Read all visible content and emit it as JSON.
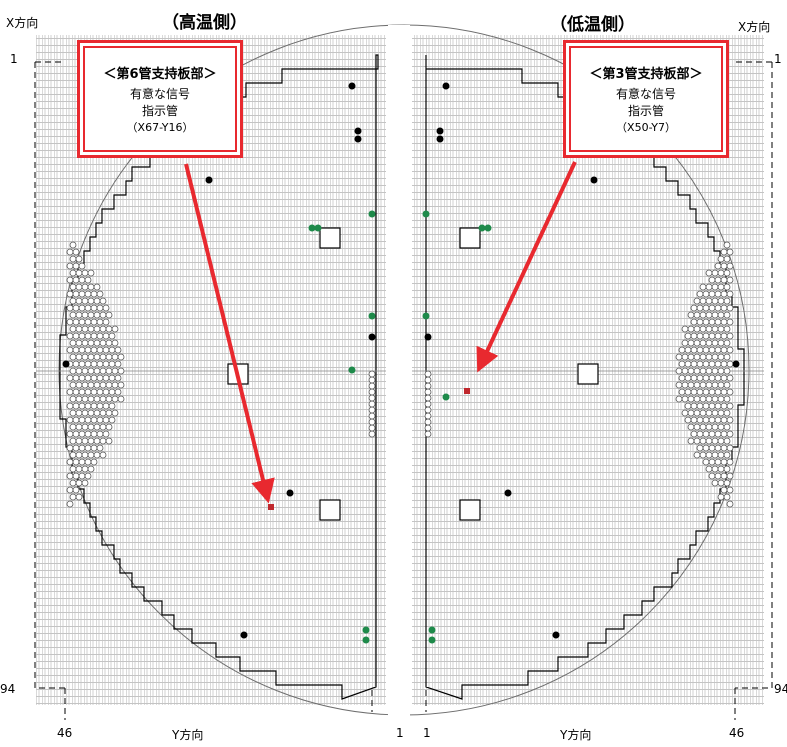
{
  "hot_side": {
    "title": "（高温側）",
    "callout": {
      "heading": "＜第6管支持板部＞",
      "line1": "有意な信号",
      "line2": "指示管",
      "tube_id": "（X67-Y16）"
    }
  },
  "cold_side": {
    "title": "（低温側）",
    "callout": {
      "heading": "＜第3管支持板部＞",
      "line1": "有意な信号",
      "line2": "指示管",
      "tube_id": "（X50-Y7）"
    }
  },
  "axes": {
    "x_label_left": "X方向",
    "x_label_right": "X方向",
    "y_label_left": "Y方向",
    "y_label_right": "Y方向",
    "left_x_start": "1",
    "left_x_end": "94",
    "right_x_start": "1",
    "right_x_end": "94",
    "left_y_start": "46",
    "left_y_end": "1",
    "right_y_start": "1",
    "right_y_end": "46"
  },
  "colors": {
    "callout_border": "#e8292f",
    "arrow": "#e8292f",
    "indicated_tube": "#c0282d",
    "plugged_tube": "#1e8a4a",
    "black_tube": "#000000",
    "grid": "#b8b8b8"
  }
}
